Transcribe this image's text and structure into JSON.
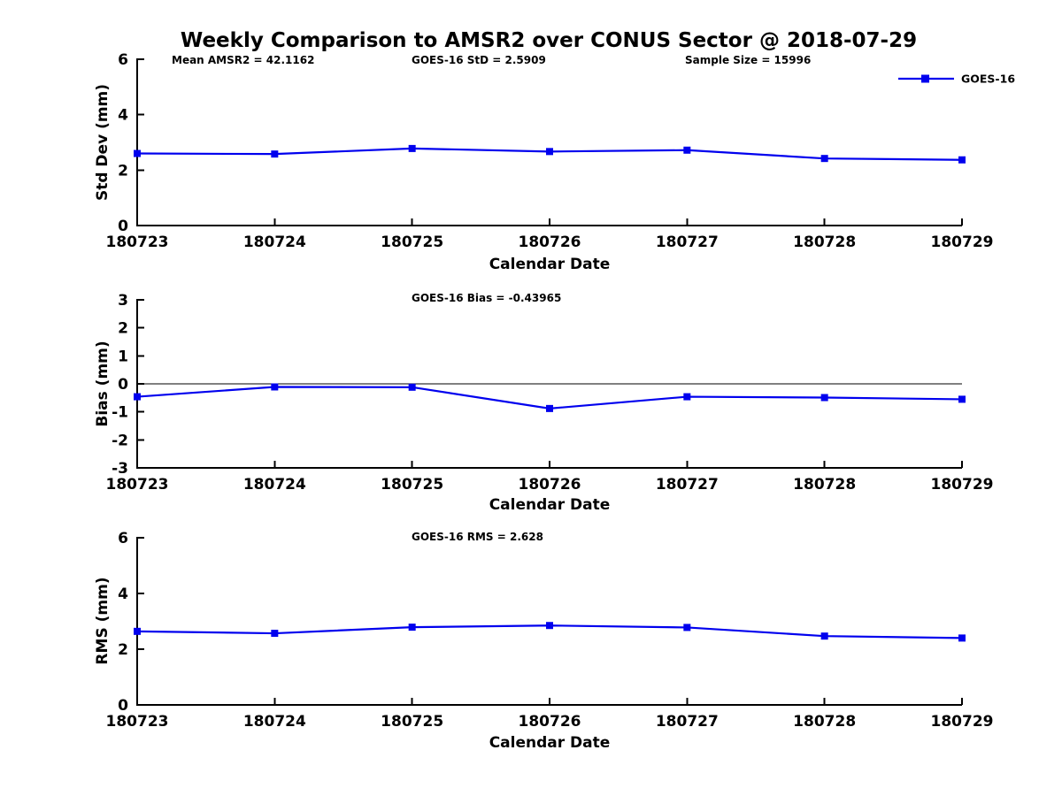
{
  "figure": {
    "title": "Weekly Comparison to AMSR2 over CONUS Sector @ 2018-07-29",
    "colors": {
      "line": "#0000ee",
      "axis": "#000000",
      "background": "#ffffff",
      "text": "#000000"
    }
  },
  "chart_data": [
    {
      "type": "line",
      "name": "std-dev-panel",
      "categories": [
        "180723",
        "180724",
        "180725",
        "180726",
        "180727",
        "180728",
        "180729"
      ],
      "series": [
        {
          "name": "GOES-16",
          "values": [
            2.6,
            2.58,
            2.78,
            2.67,
            2.72,
            2.42,
            2.37
          ]
        }
      ],
      "annotations": [
        "Mean AMSR2 = 42.1162",
        "GOES-16 StD = 2.5909",
        "Sample Size = 15996"
      ],
      "xlabel": "Calendar Date",
      "ylabel": "Std Dev (mm)",
      "ylim": [
        0,
        6
      ],
      "yticks": [
        0,
        2,
        4,
        6
      ],
      "zero_line": false,
      "grid": false,
      "legend": {
        "label": "GOES-16",
        "position": "top-right",
        "marker": "square"
      },
      "marker": "square"
    },
    {
      "type": "line",
      "name": "bias-panel",
      "categories": [
        "180723",
        "180724",
        "180725",
        "180726",
        "180727",
        "180728",
        "180729"
      ],
      "series": [
        {
          "name": "GOES-16",
          "values": [
            -0.46,
            -0.11,
            -0.12,
            -0.88,
            -0.46,
            -0.49,
            -0.55
          ]
        }
      ],
      "annotations": [
        "GOES-16 Bias  = -0.43965"
      ],
      "xlabel": "Calendar Date",
      "ylabel": "Bias (mm)",
      "ylim": [
        -3,
        3
      ],
      "yticks": [
        -3,
        -2,
        -1,
        0,
        1,
        2,
        3
      ],
      "zero_line": true,
      "grid": false,
      "marker": "square"
    },
    {
      "type": "line",
      "name": "rms-panel",
      "categories": [
        "180723",
        "180724",
        "180725",
        "180726",
        "180727",
        "180728",
        "180729"
      ],
      "series": [
        {
          "name": "GOES-16",
          "values": [
            2.64,
            2.57,
            2.79,
            2.85,
            2.78,
            2.47,
            2.4
          ]
        }
      ],
      "annotations": [
        "GOES-16 RMS = 2.628"
      ],
      "xlabel": "Calendar Date",
      "ylabel": "RMS (mm)",
      "ylim": [
        0,
        6
      ],
      "yticks": [
        0,
        2,
        4,
        6
      ],
      "zero_line": false,
      "grid": false,
      "marker": "square"
    }
  ]
}
